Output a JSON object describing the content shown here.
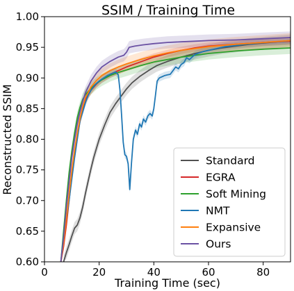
{
  "chart_data": {
    "type": "line",
    "title": "SSIM / Training Time",
    "xlabel": "Training Time (sec)",
    "ylabel": "Reconstructed SSIM",
    "xlim": [
      0,
      90
    ],
    "ylim": [
      0.6,
      1.0
    ],
    "xticks": [
      "0",
      "20",
      "40",
      "60",
      "80"
    ],
    "yticks": [
      "0.60",
      "0.65",
      "0.70",
      "0.75",
      "0.80",
      "0.85",
      "0.90",
      "0.95",
      "1.00"
    ],
    "grid": false,
    "legend_position": "lower right",
    "series": [
      {
        "name": "Standard",
        "color": "#505050",
        "band": 0.01,
        "points": [
          [
            7,
            0.6
          ],
          [
            8,
            0.615
          ],
          [
            9,
            0.628
          ],
          [
            10,
            0.642
          ],
          [
            11,
            0.655
          ],
          [
            12,
            0.66
          ],
          [
            13,
            0.672
          ],
          [
            14,
            0.69
          ],
          [
            15,
            0.712
          ],
          [
            16,
            0.732
          ],
          [
            17,
            0.752
          ],
          [
            18,
            0.77
          ],
          [
            19,
            0.785
          ],
          [
            20,
            0.8
          ],
          [
            22,
            0.823
          ],
          [
            24,
            0.844
          ],
          [
            26,
            0.858
          ],
          [
            28,
            0.87
          ],
          [
            30,
            0.882
          ],
          [
            32,
            0.892
          ],
          [
            35,
            0.903
          ],
          [
            38,
            0.912
          ],
          [
            41,
            0.92
          ],
          [
            45,
            0.927
          ],
          [
            50,
            0.934
          ],
          [
            55,
            0.94
          ],
          [
            60,
            0.945
          ],
          [
            65,
            0.949
          ],
          [
            70,
            0.952
          ],
          [
            75,
            0.955
          ],
          [
            80,
            0.957
          ],
          [
            85,
            0.959
          ],
          [
            90,
            0.961
          ]
        ]
      },
      {
        "name": "EGRA",
        "color": "#d62728",
        "band": 0.006,
        "points": [
          [
            6,
            0.6
          ],
          [
            7,
            0.625
          ],
          [
            8,
            0.66
          ],
          [
            9,
            0.7
          ],
          [
            10,
            0.74
          ],
          [
            11,
            0.775
          ],
          [
            12,
            0.805
          ],
          [
            13,
            0.83
          ],
          [
            14,
            0.85
          ],
          [
            15,
            0.865
          ],
          [
            17,
            0.88
          ],
          [
            19,
            0.89
          ],
          [
            21,
            0.898
          ],
          [
            24,
            0.906
          ],
          [
            27,
            0.912
          ],
          [
            30,
            0.918
          ],
          [
            35,
            0.926
          ],
          [
            40,
            0.934
          ],
          [
            45,
            0.94
          ],
          [
            50,
            0.945
          ],
          [
            55,
            0.949
          ],
          [
            60,
            0.952
          ],
          [
            70,
            0.955
          ],
          [
            80,
            0.958
          ],
          [
            90,
            0.96
          ]
        ]
      },
      {
        "name": "Soft Mining",
        "color": "#2ca02c",
        "band": 0.01,
        "points": [
          [
            6,
            0.6
          ],
          [
            7,
            0.65
          ],
          [
            8,
            0.7
          ],
          [
            9,
            0.745
          ],
          [
            10,
            0.78
          ],
          [
            11,
            0.81
          ],
          [
            12,
            0.835
          ],
          [
            13,
            0.852
          ],
          [
            14,
            0.865
          ],
          [
            15,
            0.873
          ],
          [
            17,
            0.883
          ],
          [
            19,
            0.891
          ],
          [
            21,
            0.897
          ],
          [
            24,
            0.904
          ],
          [
            27,
            0.909
          ],
          [
            30,
            0.913
          ],
          [
            35,
            0.92
          ],
          [
            40,
            0.926
          ],
          [
            45,
            0.93
          ],
          [
            50,
            0.934
          ],
          [
            55,
            0.937
          ],
          [
            60,
            0.94
          ],
          [
            70,
            0.944
          ],
          [
            80,
            0.947
          ],
          [
            90,
            0.949
          ]
        ]
      },
      {
        "name": "NMT",
        "color": "#1f77b4",
        "band": 0.006,
        "points": [
          [
            6,
            0.6
          ],
          [
            7,
            0.64
          ],
          [
            8,
            0.67
          ],
          [
            9,
            0.7
          ],
          [
            10,
            0.735
          ],
          [
            11,
            0.77
          ],
          [
            12,
            0.8
          ],
          [
            13,
            0.83
          ],
          [
            14,
            0.845
          ],
          [
            15,
            0.86
          ],
          [
            16,
            0.872
          ],
          [
            17,
            0.88
          ],
          [
            18,
            0.886
          ],
          [
            19,
            0.891
          ],
          [
            20,
            0.895
          ],
          [
            21,
            0.898
          ],
          [
            22,
            0.901
          ],
          [
            23,
            0.904
          ],
          [
            24,
            0.906
          ],
          [
            25,
            0.908
          ],
          [
            26,
            0.91
          ],
          [
            27,
            0.905
          ],
          [
            27.6,
            0.88
          ],
          [
            28.2,
            0.84
          ],
          [
            28.8,
            0.795
          ],
          [
            29.4,
            0.775
          ],
          [
            30,
            0.772
          ],
          [
            30.6,
            0.76
          ],
          [
            31.2,
            0.718
          ],
          [
            31.8,
            0.76
          ],
          [
            32.5,
            0.8
          ],
          [
            33.3,
            0.815
          ],
          [
            34,
            0.808
          ],
          [
            34.8,
            0.825
          ],
          [
            35.5,
            0.82
          ],
          [
            36.2,
            0.833
          ],
          [
            37,
            0.828
          ],
          [
            37.8,
            0.838
          ],
          [
            38.6,
            0.842
          ],
          [
            39.4,
            0.838
          ],
          [
            40,
            0.85
          ],
          [
            40.6,
            0.872
          ],
          [
            41.2,
            0.895
          ],
          [
            42,
            0.9
          ],
          [
            43,
            0.902
          ],
          [
            44,
            0.904
          ],
          [
            45,
            0.905
          ],
          [
            46,
            0.906
          ],
          [
            47,
            0.912
          ],
          [
            48,
            0.918
          ],
          [
            49,
            0.915
          ],
          [
            50,
            0.922
          ],
          [
            51,
            0.925
          ],
          [
            52,
            0.933
          ],
          [
            53,
            0.93
          ],
          [
            54,
            0.934
          ],
          [
            55,
            0.938
          ],
          [
            56,
            0.94
          ],
          [
            58,
            0.943
          ],
          [
            60,
            0.945
          ],
          [
            62,
            0.947
          ],
          [
            64,
            0.949
          ],
          [
            66,
            0.951
          ],
          [
            68,
            0.952
          ],
          [
            70,
            0.953
          ],
          [
            73,
            0.955
          ],
          [
            76,
            0.956
          ],
          [
            80,
            0.958
          ],
          [
            84,
            0.959
          ],
          [
            88,
            0.96
          ],
          [
            90,
            0.961
          ]
        ]
      },
      {
        "name": "Expansive",
        "color": "#ff7f0e",
        "band": 0.012,
        "points": [
          [
            6,
            0.6
          ],
          [
            7,
            0.63
          ],
          [
            8,
            0.67
          ],
          [
            9,
            0.71
          ],
          [
            10,
            0.748
          ],
          [
            11,
            0.782
          ],
          [
            12,
            0.81
          ],
          [
            13,
            0.834
          ],
          [
            14,
            0.853
          ],
          [
            15,
            0.868
          ],
          [
            17,
            0.885
          ],
          [
            19,
            0.896
          ],
          [
            21,
            0.904
          ],
          [
            24,
            0.912
          ],
          [
            27,
            0.918
          ],
          [
            30,
            0.923
          ],
          [
            35,
            0.93
          ],
          [
            40,
            0.936
          ],
          [
            45,
            0.941
          ],
          [
            50,
            0.945
          ],
          [
            55,
            0.948
          ],
          [
            60,
            0.951
          ],
          [
            70,
            0.955
          ],
          [
            80,
            0.958
          ],
          [
            90,
            0.961
          ]
        ]
      },
      {
        "name": "Ours",
        "color": "#6a51a3",
        "band": 0.01,
        "points": [
          [
            6,
            0.6
          ],
          [
            7,
            0.64
          ],
          [
            8,
            0.69
          ],
          [
            9,
            0.73
          ],
          [
            10,
            0.77
          ],
          [
            11,
            0.8
          ],
          [
            12,
            0.825
          ],
          [
            13,
            0.845
          ],
          [
            14,
            0.862
          ],
          [
            15,
            0.876
          ],
          [
            17,
            0.895
          ],
          [
            19,
            0.908
          ],
          [
            21,
            0.918
          ],
          [
            24,
            0.927
          ],
          [
            27,
            0.934
          ],
          [
            29,
            0.937
          ],
          [
            30,
            0.942
          ],
          [
            31,
            0.95
          ],
          [
            33,
            0.952
          ],
          [
            36,
            0.954
          ],
          [
            40,
            0.956
          ],
          [
            45,
            0.958
          ],
          [
            50,
            0.959
          ],
          [
            55,
            0.96
          ],
          [
            60,
            0.961
          ],
          [
            70,
            0.962
          ],
          [
            80,
            0.964
          ],
          [
            90,
            0.966
          ]
        ]
      }
    ]
  }
}
